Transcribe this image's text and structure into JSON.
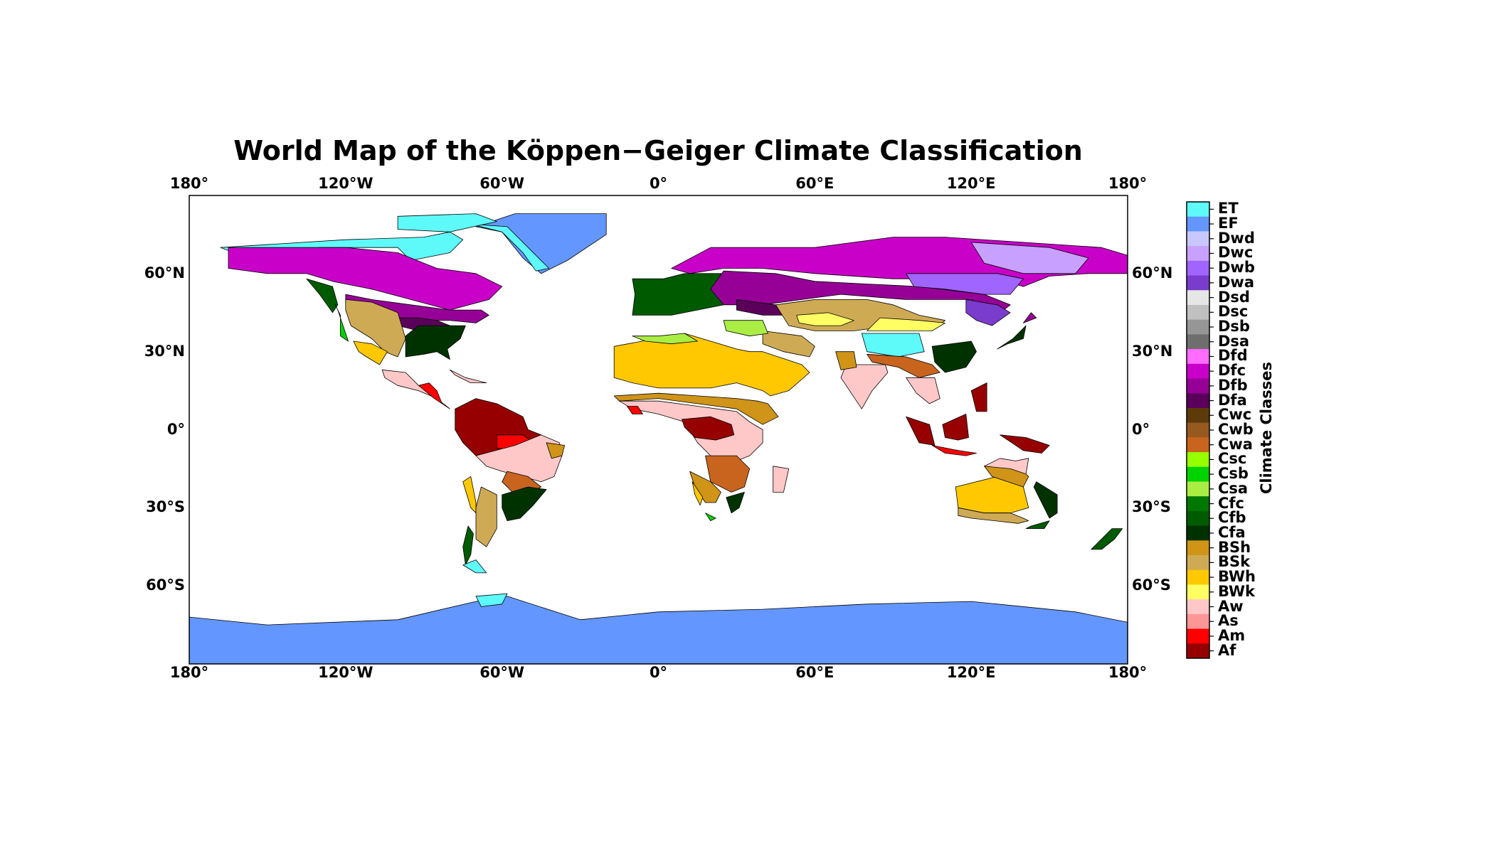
{
  "map": {
    "title": "World Map of the Köppen−Geiger Climate Classification",
    "projection": "equirectangular",
    "extent": {
      "lon": [
        -180,
        180
      ],
      "lat": [
        -90,
        90
      ]
    },
    "lon_ticks": [
      {
        "value": -180,
        "label": "180°"
      },
      {
        "value": -120,
        "label": "120°W"
      },
      {
        "value": -60,
        "label": "60°W"
      },
      {
        "value": 0,
        "label": "0°"
      },
      {
        "value": 60,
        "label": "60°E"
      },
      {
        "value": 120,
        "label": "120°E"
      },
      {
        "value": 180,
        "label": "180°"
      }
    ],
    "lat_ticks": [
      {
        "value": 60,
        "label": "60°N"
      },
      {
        "value": 30,
        "label": "30°N"
      },
      {
        "value": 0,
        "label": "0°"
      },
      {
        "value": -30,
        "label": "30°S"
      },
      {
        "value": -60,
        "label": "60°S"
      }
    ],
    "ocean_color": "#ffffff",
    "border_color": "#000000"
  },
  "colorbar": {
    "title": "Climate Classes",
    "classes": [
      {
        "code": "ET",
        "color": "#5efafa"
      },
      {
        "code": "EF",
        "color": "#6496ff"
      },
      {
        "code": "Dwd",
        "color": "#c8c8ff"
      },
      {
        "code": "Dwc",
        "color": "#c8a0ff"
      },
      {
        "code": "Dwb",
        "color": "#a064ff"
      },
      {
        "code": "Dwa",
        "color": "#7a3ccc"
      },
      {
        "code": "Dsd",
        "color": "#e6e6e6"
      },
      {
        "code": "Dsc",
        "color": "#c0c0c0"
      },
      {
        "code": "Dsb",
        "color": "#969696"
      },
      {
        "code": "Dsa",
        "color": "#6e6e6e"
      },
      {
        "code": "Dfd",
        "color": "#ff6cff"
      },
      {
        "code": "Dfc",
        "color": "#c800c8"
      },
      {
        "code": "Dfb",
        "color": "#960096"
      },
      {
        "code": "Dfa",
        "color": "#5a005a"
      },
      {
        "code": "Cwc",
        "color": "#5c3a0a"
      },
      {
        "code": "Cwb",
        "color": "#965a1e"
      },
      {
        "code": "Cwa",
        "color": "#c8641e"
      },
      {
        "code": "Csc",
        "color": "#96ff00"
      },
      {
        "code": "Csb",
        "color": "#00d200"
      },
      {
        "code": "Csa",
        "color": "#aaee44"
      },
      {
        "code": "Cfc",
        "color": "#007800"
      },
      {
        "code": "Cfb",
        "color": "#005a00"
      },
      {
        "code": "Cfa",
        "color": "#003200"
      },
      {
        "code": "BSh",
        "color": "#cf9418"
      },
      {
        "code": "BSk",
        "color": "#cfaa55"
      },
      {
        "code": "BWh",
        "color": "#ffc800"
      },
      {
        "code": "BWk",
        "color": "#ffff64"
      },
      {
        "code": "Aw",
        "color": "#ffc8c8"
      },
      {
        "code": "As",
        "color": "#ff9696"
      },
      {
        "code": "Am",
        "color": "#ff0000"
      },
      {
        "code": "Af",
        "color": "#960000"
      }
    ]
  }
}
